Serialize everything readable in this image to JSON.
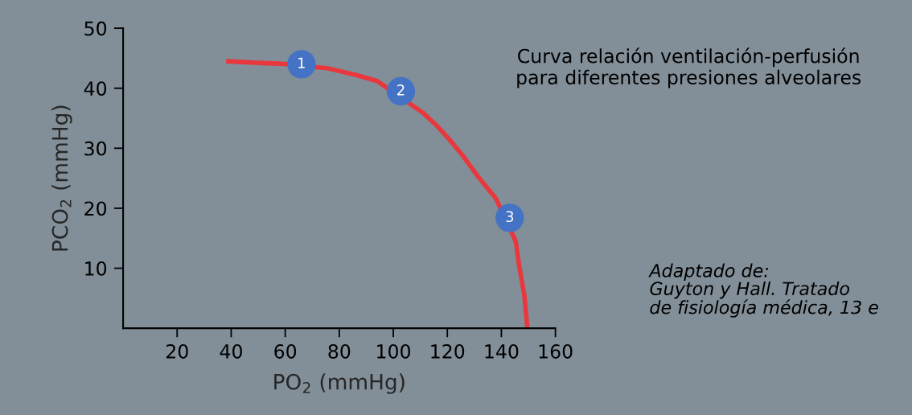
{
  "chart_data": {
    "type": "line",
    "title": "Curva relación ventilación-perfusión\npara diferentes presiones alveolares",
    "xlabel": "PO$_{2}$ (mmHg)",
    "ylabel": "PCO$_{2}$ (mmHg)",
    "xlim": [
      0,
      160
    ],
    "ylim": [
      0,
      50
    ],
    "xticks": [
      20,
      40,
      60,
      80,
      100,
      120,
      140,
      160
    ],
    "yticks": [
      10,
      20,
      30,
      40,
      50
    ],
    "grid": false,
    "legend": false,
    "series": [
      {
        "color": "#e8383d",
        "line_style": "solid",
        "marker": "none",
        "x": [
          38.1,
          51.5,
          58,
          76,
          86.2,
          94,
          111,
          116,
          120.9,
          126,
          130.8,
          138,
          145.3,
          146.6,
          148.5,
          149.6,
          150
        ],
        "values": [
          44.5,
          44.2,
          44.1,
          43.3,
          42.2,
          41.2,
          35.9,
          33.8,
          31.4,
          28.6,
          25.6,
          21.6,
          14.5,
          10.4,
          5.5,
          0.2,
          0
        ]
      },
      {
        "type": "scatter",
        "color": "#4472c4",
        "marker": "circle",
        "x": [
          66,
          102.8,
          143.1
        ],
        "values": [
          44.0,
          39.5,
          18.4
        ]
      }
    ],
    "annotations": [
      {
        "text": "1",
        "x": 66,
        "y": 44.0
      },
      {
        "text": "2",
        "x": 102.8,
        "y": 39.5
      },
      {
        "text": "3",
        "x": 143.1,
        "y": 18.4
      },
      "Adaptado de:\nGuyton y Hall. Tratado\nde fisiología médica, 13 e"
    ]
  }
}
